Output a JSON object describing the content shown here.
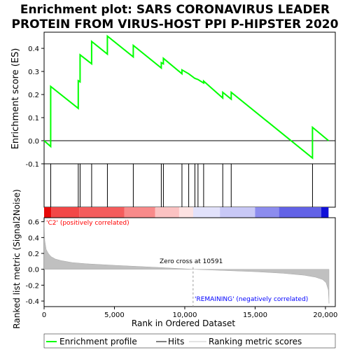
{
  "chart_data": {
    "type": "line",
    "title_lines": [
      "Enrichment plot: SARS CORONAVIRUS LEADER",
      "PROTEIN FROM VIRUS-HOST PPI P-HIPSTER 2020"
    ],
    "xlabel": "Rank in Ordered Dataset",
    "es_ylabel": "Enrichment score (ES)",
    "metric_ylabel": "Ranked list metric (Signal2Noise)",
    "xlim": [
      0,
      20700
    ],
    "x_ticks": [
      0,
      5000,
      10000,
      15000,
      20000
    ],
    "x_tick_labels": [
      "0",
      "5,000",
      "10,000",
      "15,000",
      "20,000"
    ],
    "es_ylim": [
      -0.1,
      0.47
    ],
    "es_y_ticks": [
      -0.1,
      0.0,
      0.1,
      0.2,
      0.3,
      0.4
    ],
    "es_y_tick_labels": [
      "-0.1",
      "0.0",
      "0.1",
      "0.2",
      "0.3",
      "0.4"
    ],
    "metric_ylim": [
      -0.47,
      0.65
    ],
    "metric_y_ticks": [
      -0.4,
      -0.2,
      0.0,
      0.2,
      0.4,
      0.6
    ],
    "metric_y_tick_labels": [
      "-0.4",
      "-0.2",
      "0.0",
      "0.2",
      "0.4",
      "0.6"
    ],
    "hits": [
      470,
      2430,
      2560,
      3380,
      4500,
      6340,
      8330,
      8480,
      9800,
      10280,
      10720,
      10940,
      11340,
      12700,
      13300,
      19080
    ],
    "es_curve": {
      "x": [
        0,
        470,
        470,
        2430,
        2430,
        2560,
        2560,
        3380,
        3380,
        4500,
        4500,
        6340,
        6340,
        8330,
        8330,
        8480,
        8480,
        9800,
        9800,
        10280,
        10280,
        10720,
        10720,
        10940,
        10940,
        11340,
        11340,
        12700,
        12700,
        13300,
        13300,
        19080,
        19080,
        20220
      ],
      "y": [
        0.0,
        -0.025,
        0.235,
        0.14,
        0.26,
        0.255,
        0.372,
        0.333,
        0.43,
        0.375,
        0.453,
        0.363,
        0.413,
        0.315,
        0.338,
        0.333,
        0.357,
        0.29,
        0.307,
        0.29,
        0.29,
        0.27,
        0.27,
        0.265,
        0.265,
        0.25,
        0.258,
        0.185,
        0.21,
        0.18,
        0.21,
        -0.075,
        0.058,
        0.0
      ]
    },
    "metric_curve": {
      "x": [
        0,
        50,
        150,
        300,
        500,
        800,
        1200,
        2000,
        3000,
        5000,
        8000,
        10591,
        12000,
        15000,
        17000,
        18500,
        19300,
        19800,
        20050,
        20200,
        20250
      ],
      "y": [
        0.6,
        0.36,
        0.25,
        0.2,
        0.16,
        0.13,
        0.11,
        0.085,
        0.07,
        0.05,
        0.025,
        0.0,
        -0.01,
        -0.03,
        -0.05,
        -0.075,
        -0.1,
        -0.13,
        -0.17,
        -0.26,
        -0.43
      ]
    },
    "heatmap_bar": {
      "segments": [
        {
          "from": 0,
          "to": 500,
          "color": "#e60a0a"
        },
        {
          "from": 500,
          "to": 2500,
          "color": "#f24848"
        },
        {
          "from": 2500,
          "to": 5700,
          "color": "#f45c5c"
        },
        {
          "from": 5700,
          "to": 7900,
          "color": "#f88a8a"
        },
        {
          "from": 7900,
          "to": 9600,
          "color": "#fbc2c2"
        },
        {
          "from": 9600,
          "to": 10600,
          "color": "#fde2e2"
        },
        {
          "from": 10600,
          "to": 12500,
          "color": "#e2e2fb"
        },
        {
          "from": 12500,
          "to": 15000,
          "color": "#c8c8f6"
        },
        {
          "from": 15000,
          "to": 16700,
          "color": "#8c8cee"
        },
        {
          "from": 16700,
          "to": 19700,
          "color": "#6262e6"
        },
        {
          "from": 19700,
          "to": 20220,
          "color": "#1010d8"
        }
      ]
    },
    "zero_cross": 10591,
    "annotations": {
      "pos_label": "'C2' (positively correlated)",
      "neg_label": "'REMAINING' (negatively correlated)",
      "zero_cross_label": "Zero cross at 10591"
    },
    "legend": {
      "placement": "bottom",
      "items": [
        {
          "label": "Enrichment profile",
          "color": "#00ff00",
          "style": "line"
        },
        {
          "label": "Hits",
          "color": "#000000",
          "style": "line"
        },
        {
          "label": "Ranking metric scores",
          "color": "#c8c8c8",
          "style": "line"
        }
      ]
    },
    "colors": {
      "enrichment_line": "#00ff00",
      "metric_fill": "#c0c0c0",
      "pos_text": "#ff0000",
      "neg_text": "#0000ff"
    }
  }
}
